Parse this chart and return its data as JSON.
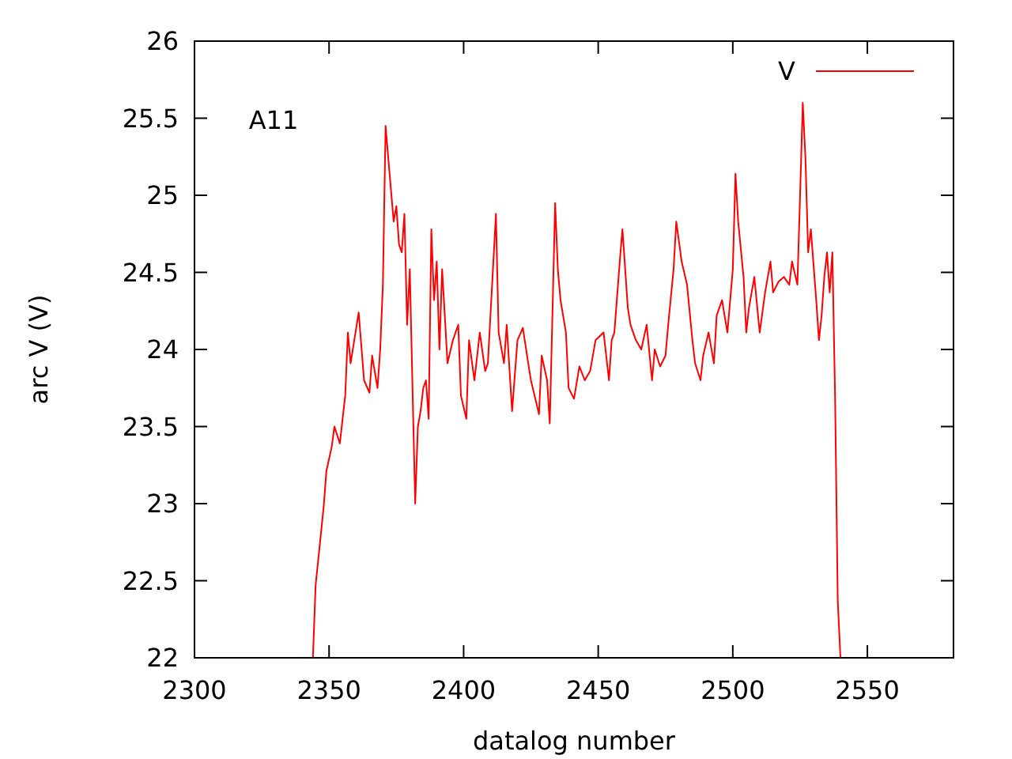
{
  "chart_data": {
    "type": "line",
    "xlabel": "datalog number",
    "ylabel": "arc V (V)",
    "xlim": [
      2300,
      2582
    ],
    "ylim": [
      22,
      26
    ],
    "xticks": [
      2300,
      2350,
      2400,
      2450,
      2500,
      2550
    ],
    "yticks": [
      22,
      22.5,
      23,
      23.5,
      24,
      24.5,
      25,
      25.5,
      26
    ],
    "grid": false,
    "legend": "top right",
    "marker": "none",
    "line_style": "solid",
    "annotations": [
      "A11"
    ],
    "x": [
      2344,
      2345,
      2348,
      2349,
      2351,
      2352,
      2354,
      2356,
      2357,
      2358,
      2361,
      2363,
      2365,
      2366,
      2368,
      2369,
      2370,
      2371,
      2372,
      2374,
      2375,
      2376,
      2377,
      2378,
      2379,
      2380,
      2381,
      2382,
      2383,
      2384,
      2385,
      2386,
      2387,
      2388,
      2389,
      2390,
      2391,
      2392,
      2393,
      2394,
      2396,
      2398,
      2399,
      2401,
      2402,
      2404,
      2406,
      2408,
      2409,
      2412,
      2413,
      2415,
      2416,
      2418,
      2420,
      2422,
      2424,
      2425,
      2428,
      2429,
      2431,
      2432,
      2434,
      2435,
      2436,
      2438,
      2439,
      2441,
      2443,
      2445,
      2447,
      2449,
      2452,
      2454,
      2455,
      2456,
      2458,
      2459,
      2461,
      2462,
      2464,
      2466,
      2468,
      2470,
      2471,
      2473,
      2475,
      2476,
      2478,
      2479,
      2481,
      2483,
      2485,
      2486,
      2488,
      2489,
      2491,
      2493,
      2494,
      2496,
      2498,
      2500,
      2501,
      2502,
      2504,
      2505,
      2506,
      2508,
      2510,
      2512,
      2514,
      2515,
      2517,
      2519,
      2521,
      2522,
      2524,
      2525,
      2526,
      2527,
      2528,
      2529,
      2531,
      2532,
      2533,
      2534,
      2535,
      2536,
      2537,
      2538,
      2539,
      2540
    ],
    "series": [
      {
        "name": "V",
        "color": "#ff0000",
        "values": [
          22,
          22.47,
          22.98,
          23.21,
          23.37,
          23.5,
          23.39,
          23.7,
          24.11,
          23.91,
          24.24,
          23.8,
          23.72,
          23.96,
          23.75,
          24.0,
          24.42,
          25.45,
          25.24,
          24.83,
          24.93,
          24.68,
          24.63,
          24.88,
          24.16,
          24.52,
          23.75,
          23.0,
          23.5,
          23.6,
          23.75,
          23.8,
          23.55,
          24.78,
          24.32,
          24.57,
          24.0,
          24.52,
          24.22,
          23.91,
          24.06,
          24.16,
          23.7,
          23.55,
          24.06,
          23.8,
          24.11,
          23.86,
          23.91,
          24.88,
          24.11,
          23.91,
          24.16,
          23.6,
          24.06,
          24.14,
          23.91,
          23.8,
          23.58,
          23.96,
          23.8,
          23.52,
          24.95,
          24.52,
          24.32,
          24.11,
          23.75,
          23.68,
          23.89,
          23.8,
          23.86,
          24.06,
          24.11,
          23.8,
          24.06,
          24.11,
          24.57,
          24.78,
          24.27,
          24.16,
          24.06,
          24.0,
          24.16,
          23.8,
          24.0,
          23.89,
          23.96,
          24.16,
          24.52,
          24.83,
          24.57,
          24.42,
          24.06,
          23.91,
          23.8,
          23.96,
          24.11,
          23.91,
          24.22,
          24.32,
          24.11,
          24.52,
          25.14,
          24.83,
          24.47,
          24.11,
          24.27,
          24.47,
          24.11,
          24.37,
          24.57,
          24.37,
          24.44,
          24.47,
          24.42,
          24.57,
          24.42,
          25.0,
          25.6,
          25.24,
          24.63,
          24.78,
          24.32,
          24.06,
          24.22,
          24.47,
          24.63,
          24.37,
          24.63,
          23.7,
          22.37,
          22
        ]
      }
    ]
  }
}
